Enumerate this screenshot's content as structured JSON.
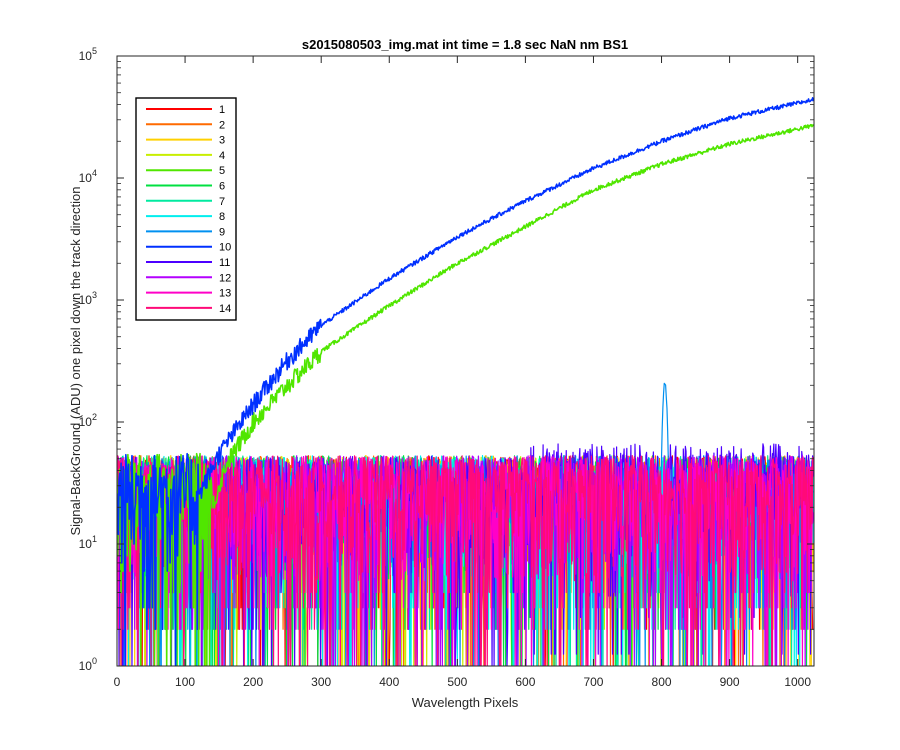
{
  "chart_data": {
    "type": "line",
    "title": "s2015080503_img.mat int time = 1.8 sec  NaN nm BS1",
    "xlabel": "Wavelength Pixels",
    "ylabel": "Signal-BackGround (ADU) one pixel down the track direction",
    "xlim": [
      0,
      1024
    ],
    "ylim": [
      1,
      100000
    ],
    "yscale": "log",
    "grid": false,
    "legend_position": "top-left",
    "x_ticks": [
      "0",
      "100",
      "200",
      "300",
      "400",
      "500",
      "600",
      "700",
      "800",
      "900",
      "1000"
    ],
    "y_ticks": [
      {
        "base": "10",
        "exp": "0"
      },
      {
        "base": "10",
        "exp": "1"
      },
      {
        "base": "10",
        "exp": "2"
      },
      {
        "base": "10",
        "exp": "3"
      },
      {
        "base": "10",
        "exp": "4"
      },
      {
        "base": "10",
        "exp": "5"
      }
    ],
    "series": [
      {
        "name": "1",
        "color": "#ff0000",
        "kind": "noise"
      },
      {
        "name": "2",
        "color": "#ff6a00",
        "kind": "noise"
      },
      {
        "name": "3",
        "color": "#ffd000",
        "kind": "noise"
      },
      {
        "name": "4",
        "color": "#c8ee00",
        "kind": "noise"
      },
      {
        "name": "5",
        "color": "#50e600",
        "kind": "signal",
        "points": [
          [
            140,
            20
          ],
          [
            160,
            45
          ],
          [
            200,
            100
          ],
          [
            250,
            200
          ],
          [
            300,
            380
          ],
          [
            400,
            900
          ],
          [
            500,
            2000
          ],
          [
            600,
            4000
          ],
          [
            700,
            8000
          ],
          [
            800,
            13000
          ],
          [
            900,
            19000
          ],
          [
            1024,
            27000
          ]
        ]
      },
      {
        "name": "6",
        "color": "#00e040",
        "kind": "noise"
      },
      {
        "name": "7",
        "color": "#00eaa0",
        "kind": "noise"
      },
      {
        "name": "8",
        "color": "#00eeee",
        "kind": "noise"
      },
      {
        "name": "9",
        "color": "#0090f0",
        "kind": "noise",
        "peak": {
          "x": 805,
          "y": 220
        }
      },
      {
        "name": "10",
        "color": "#0030ff",
        "kind": "signal",
        "points": [
          [
            120,
            25
          ],
          [
            150,
            55
          ],
          [
            200,
            140
          ],
          [
            250,
            320
          ],
          [
            300,
            620
          ],
          [
            400,
            1500
          ],
          [
            500,
            3300
          ],
          [
            600,
            6500
          ],
          [
            700,
            12000
          ],
          [
            800,
            20000
          ],
          [
            900,
            31000
          ],
          [
            1024,
            44000
          ]
        ]
      },
      {
        "name": "11",
        "color": "#4c00ff",
        "kind": "noise"
      },
      {
        "name": "12",
        "color": "#b400ff",
        "kind": "noise"
      },
      {
        "name": "13",
        "color": "#ff00c8",
        "kind": "noise"
      },
      {
        "name": "14",
        "color": "#ff0a78",
        "kind": "noise"
      }
    ]
  }
}
